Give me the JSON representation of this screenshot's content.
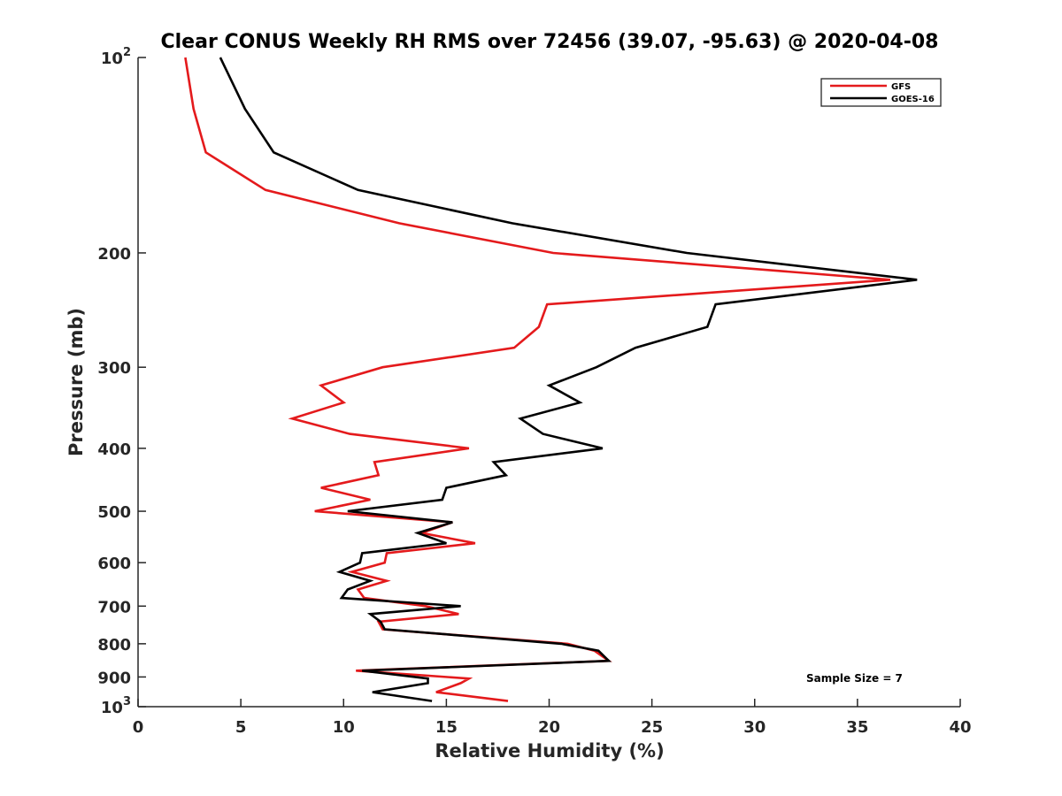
{
  "chart_data": {
    "type": "line",
    "title": "Clear CONUS Weekly RH RMS over 72456 (39.07, -95.63) @ 2020-04-08",
    "xlabel": "Relative Humidity (%)",
    "ylabel": "Pressure (mb)",
    "xlim": [
      0,
      40
    ],
    "ylim": [
      100,
      1000
    ],
    "yscale": "log",
    "yreversed": true,
    "grid": false,
    "legend_position": "top-right",
    "x_ticks": [
      0,
      5,
      10,
      15,
      20,
      25,
      30,
      35,
      40
    ],
    "x_tick_labels": [
      "0",
      "5",
      "10",
      "15",
      "20",
      "25",
      "30",
      "35",
      "40"
    ],
    "y_ticks": [
      100,
      200,
      300,
      400,
      500,
      600,
      700,
      800,
      900,
      1000
    ],
    "y_tick_labels": [
      {
        "base": "10",
        "exp": "2"
      },
      {
        "base": "200",
        "exp": ""
      },
      {
        "base": "300",
        "exp": ""
      },
      {
        "base": "400",
        "exp": ""
      },
      {
        "base": "500",
        "exp": ""
      },
      {
        "base": "600",
        "exp": ""
      },
      {
        "base": "700",
        "exp": ""
      },
      {
        "base": "800",
        "exp": ""
      },
      {
        "base": "900",
        "exp": ""
      },
      {
        "base": "10",
        "exp": "3"
      }
    ],
    "series": [
      {
        "name": "GFS",
        "color": "#e41a1c",
        "pressure": [
          100,
          120,
          140,
          160,
          180,
          200,
          220,
          240,
          260,
          280,
          300,
          320,
          340,
          360,
          380,
          400,
          420,
          440,
          460,
          480,
          500,
          520,
          540,
          560,
          580,
          600,
          620,
          640,
          660,
          680,
          700,
          720,
          740,
          760,
          800,
          820,
          850,
          880,
          905,
          920,
          950,
          980
        ],
        "values": [
          2.3,
          2.7,
          3.3,
          6.2,
          12.7,
          20.2,
          36.6,
          19.9,
          19.5,
          18.3,
          11.9,
          8.9,
          10.0,
          7.5,
          10.3,
          16.1,
          11.5,
          11.7,
          8.9,
          11.3,
          8.6,
          15.3,
          13.8,
          16.4,
          12.1,
          12.0,
          10.4,
          12.1,
          10.7,
          11.0,
          14.0,
          15.6,
          11.7,
          11.9,
          20.9,
          22.2,
          22.9,
          10.6,
          16.1,
          15.7,
          14.5,
          18.0
        ]
      },
      {
        "name": "GOES-16",
        "color": "#000000",
        "pressure": [
          100,
          120,
          140,
          160,
          180,
          200,
          220,
          240,
          260,
          280,
          300,
          320,
          340,
          360,
          380,
          400,
          420,
          440,
          460,
          480,
          500,
          520,
          540,
          560,
          580,
          600,
          620,
          640,
          660,
          680,
          700,
          720,
          740,
          760,
          800,
          820,
          850,
          880,
          905,
          920,
          950,
          980
        ],
        "values": [
          4.0,
          5.2,
          6.6,
          10.7,
          18.2,
          26.7,
          37.9,
          28.1,
          27.7,
          24.2,
          22.3,
          20.0,
          21.5,
          18.6,
          19.7,
          22.6,
          17.3,
          17.9,
          15.0,
          14.8,
          10.2,
          15.3,
          13.6,
          15.0,
          10.9,
          10.8,
          9.8,
          11.3,
          10.2,
          9.9,
          15.7,
          11.3,
          11.8,
          12.0,
          20.6,
          22.4,
          22.9,
          10.9,
          14.1,
          14.1,
          11.4,
          14.3
        ]
      }
    ],
    "annotations": [
      "Sample Size = 7"
    ]
  }
}
